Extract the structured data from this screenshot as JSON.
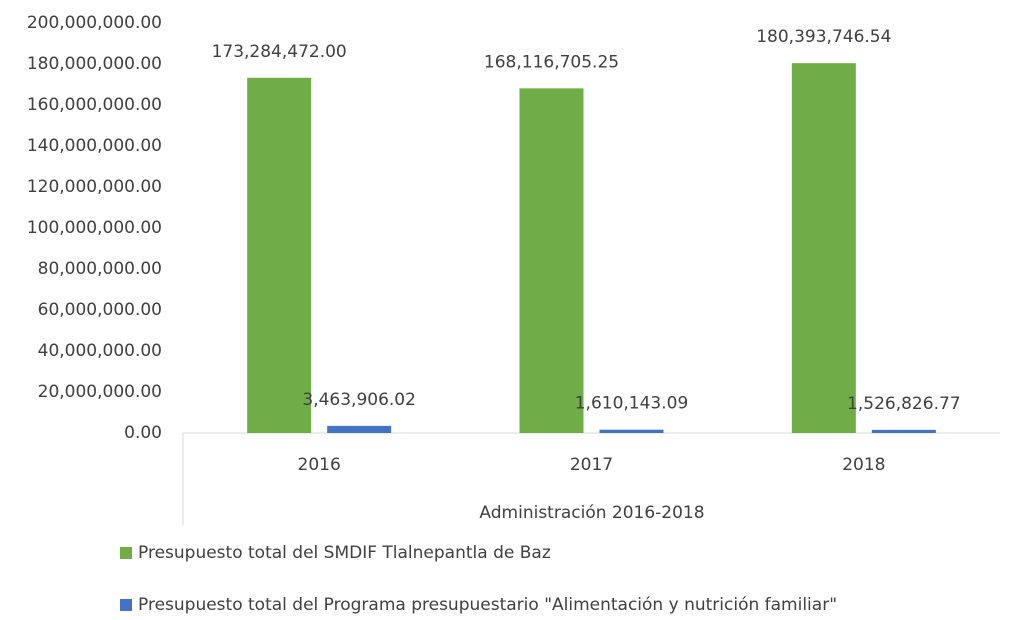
{
  "chart_data": {
    "type": "bar",
    "categories": [
      "2016",
      "2017",
      "2018"
    ],
    "category_group": "Administración 2016-2018",
    "series": [
      {
        "name": "Presupuesto total del SMDIF Tlalnepantla de Baz",
        "color": "#70ad47",
        "values": [
          173284472.0,
          168116705.25,
          180393746.54
        ],
        "value_labels": [
          "173,284,472.00",
          "168,116,705.25",
          "180,393,746.54"
        ]
      },
      {
        "name": "Presupuesto total del Programa presupuestario \"Alimentación y nutrición familiar\"",
        "color": "#4472c4",
        "values": [
          3463906.02,
          1610143.09,
          1526826.77
        ],
        "value_labels": [
          "3,463,906.02",
          "1,610,143.09",
          "1,526,826.77"
        ]
      }
    ],
    "ylim": [
      0,
      200000000
    ],
    "yticks": [
      {
        "value": 0,
        "label": "0.00"
      },
      {
        "value": 20000000,
        "label": "20,000,000.00"
      },
      {
        "value": 40000000,
        "label": "40,000,000.00"
      },
      {
        "value": 60000000,
        "label": "60,000,000.00"
      },
      {
        "value": 80000000,
        "label": "80,000,000.00"
      },
      {
        "value": 100000000,
        "label": "100,000,000.00"
      },
      {
        "value": 120000000,
        "label": "120,000,000.00"
      },
      {
        "value": 140000000,
        "label": "140,000,000.00"
      },
      {
        "value": 160000000,
        "label": "160,000,000.00"
      },
      {
        "value": 180000000,
        "label": "180,000,000.00"
      },
      {
        "value": 200000000,
        "label": "200,000,000.00"
      }
    ],
    "grid": false,
    "legend": "bottom"
  }
}
